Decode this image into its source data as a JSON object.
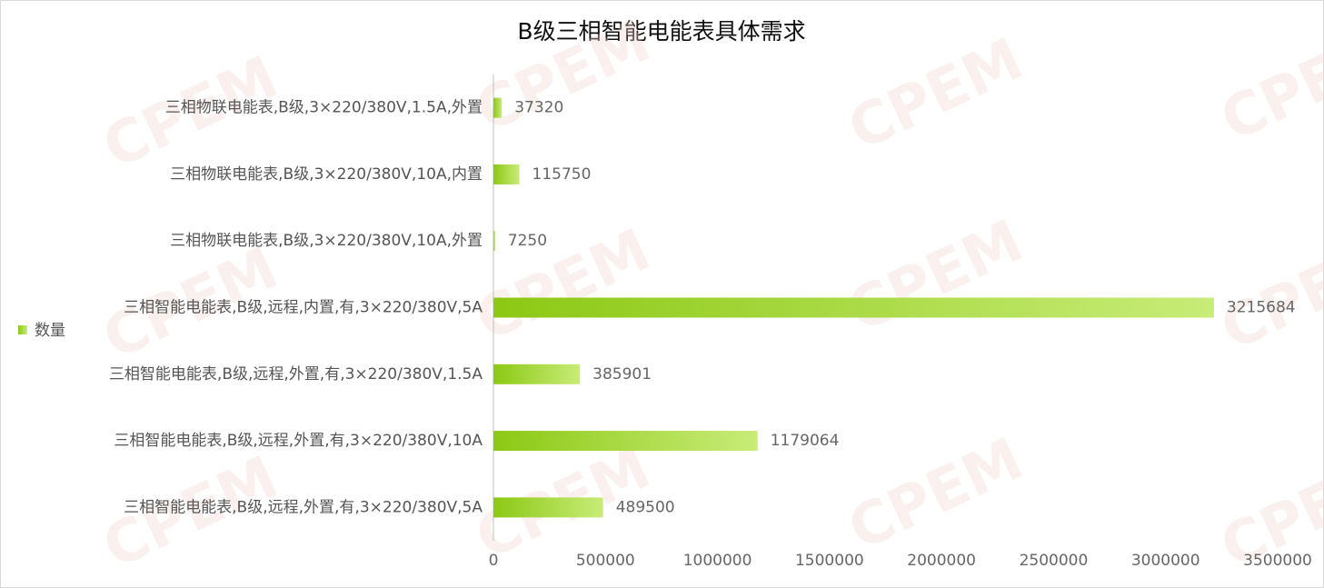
{
  "chart_data": {
    "type": "bar",
    "orientation": "horizontal",
    "title": "B级三相智能电能表具体需求",
    "watermark": "CPEM",
    "categories": [
      "三相物联电能表,B级,3×220/380V,1.5A,外置",
      "三相物联电能表,B级,3×220/380V,10A,内置",
      "三相物联电能表,B级,3×220/380V,10A,外置",
      "三相智能电能表,B级,远程,内置,有,3×220/380V,5A",
      "三相智能电能表,B级,远程,外置,有,3×220/380V,1.5A",
      "三相智能电能表,B级,远程,外置,有,3×220/380V,10A",
      "三相智能电能表,B级,远程,外置,有,3×220/380V,5A"
    ],
    "series": [
      {
        "name": "数量",
        "color": "#8cc814",
        "values": [
          37320,
          115750,
          7250,
          3215684,
          385901,
          1179064,
          489500
        ]
      }
    ],
    "xlim": [
      0,
      3500000
    ],
    "xticks": [
      0,
      500000,
      1000000,
      1500000,
      2000000,
      2500000,
      3000000,
      3500000
    ],
    "legend": "left",
    "data_labels": true
  }
}
